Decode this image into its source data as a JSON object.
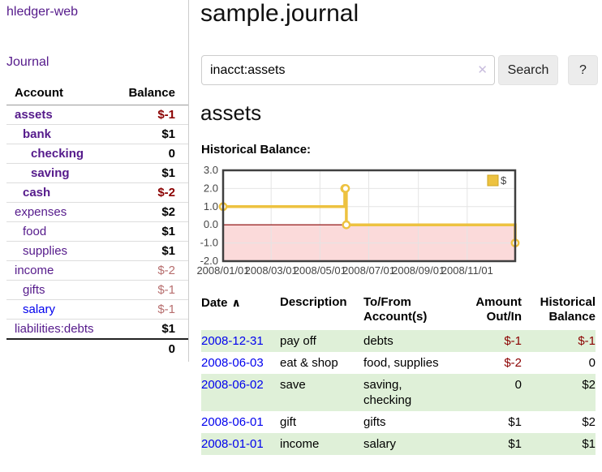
{
  "sidebar": {
    "brand": "hledger-web",
    "journal_link": "Journal",
    "accounts_table": {
      "col_account": "Account",
      "col_balance": "Balance",
      "rows": [
        {
          "name": "assets",
          "depth": 0,
          "emph": true,
          "unvisited": false,
          "balance": "$-1",
          "negative": true,
          "muted": false
        },
        {
          "name": "bank",
          "depth": 1,
          "emph": true,
          "unvisited": false,
          "balance": "$1",
          "negative": false,
          "muted": false
        },
        {
          "name": "checking",
          "depth": 2,
          "emph": true,
          "unvisited": false,
          "balance": "0",
          "negative": false,
          "muted": false
        },
        {
          "name": "saving",
          "depth": 2,
          "emph": true,
          "unvisited": false,
          "balance": "$1",
          "negative": false,
          "muted": false
        },
        {
          "name": "cash",
          "depth": 1,
          "emph": true,
          "unvisited": false,
          "balance": "$-2",
          "negative": true,
          "muted": false
        },
        {
          "name": "expenses",
          "depth": 0,
          "emph": false,
          "unvisited": false,
          "balance": "$2",
          "negative": false,
          "muted": false
        },
        {
          "name": "food",
          "depth": 1,
          "emph": false,
          "unvisited": false,
          "balance": "$1",
          "negative": false,
          "muted": false
        },
        {
          "name": "supplies",
          "depth": 1,
          "emph": false,
          "unvisited": false,
          "balance": "$1",
          "negative": false,
          "muted": false
        },
        {
          "name": "income",
          "depth": 0,
          "emph": false,
          "unvisited": false,
          "balance": "$-2",
          "negative": true,
          "muted": true
        },
        {
          "name": "gifts",
          "depth": 1,
          "emph": false,
          "unvisited": false,
          "balance": "$-1",
          "negative": true,
          "muted": true
        },
        {
          "name": "salary",
          "depth": 1,
          "emph": false,
          "unvisited": true,
          "balance": "$-1",
          "negative": true,
          "muted": true
        },
        {
          "name": "liabilities:debts",
          "depth": 0,
          "emph": false,
          "unvisited": false,
          "balance": "$1",
          "negative": false,
          "muted": false
        }
      ],
      "total": "0"
    }
  },
  "main": {
    "title": "sample.journal",
    "search": {
      "value": "inacct:assets",
      "clear_glyph": "✕",
      "button_label": "Search",
      "help_label": "?"
    },
    "account_heading": "assets",
    "chart_heading": "Historical Balance:"
  },
  "chart_data": {
    "type": "line",
    "step": true,
    "title": "Historical Balance:",
    "x_start": "2008-01-01",
    "x_end": "2008-12-31",
    "xticks": [
      "2008/01/01",
      "2008/03/01",
      "2008/05/01",
      "2008/07/01",
      "2008/09/01",
      "2008/11/01"
    ],
    "yticks": [
      "3.0",
      "2.0",
      "1.0",
      "0.0",
      "-1.0",
      "-2.0"
    ],
    "ylim": [
      -2,
      3
    ],
    "series": [
      {
        "name": "$",
        "color": "#edc240",
        "points": [
          [
            "2008-01-01",
            1
          ],
          [
            "2008-06-01",
            2
          ],
          [
            "2008-06-02",
            2
          ],
          [
            "2008-06-03",
            0
          ],
          [
            "2008-12-31",
            -1
          ]
        ]
      }
    ],
    "negative_region_fill": "#fbdada",
    "zero_line_color": "#8b0000",
    "grid_color": "#e4e4e4",
    "border_color": "#3f3f3f",
    "legend_position": "top-right",
    "legend_label": "$"
  },
  "register": {
    "headers": {
      "date": "Date",
      "description": "Description",
      "account": "To/From Account(s)",
      "amount": "Amount Out/In",
      "balance": "Historical Balance"
    },
    "sort_glyph": "∧",
    "rows": [
      {
        "date": "2008-12-31",
        "description": "pay off",
        "accounts": "debts",
        "amount": "$-1",
        "amount_neg": true,
        "balance": "$-1",
        "balance_neg": true
      },
      {
        "date": "2008-06-03",
        "description": "eat & shop",
        "accounts": "food, supplies",
        "amount": "$-2",
        "amount_neg": true,
        "balance": "0",
        "balance_neg": false
      },
      {
        "date": "2008-06-02",
        "description": "save",
        "accounts": "saving, checking",
        "amount": "0",
        "amount_neg": false,
        "balance": "$2",
        "balance_neg": false
      },
      {
        "date": "2008-06-01",
        "description": "gift",
        "accounts": "gifts",
        "amount": "$1",
        "amount_neg": false,
        "balance": "$2",
        "balance_neg": false
      },
      {
        "date": "2008-01-01",
        "description": "income",
        "accounts": "salary",
        "amount": "$1",
        "amount_neg": false,
        "balance": "$1",
        "balance_neg": false
      }
    ]
  }
}
